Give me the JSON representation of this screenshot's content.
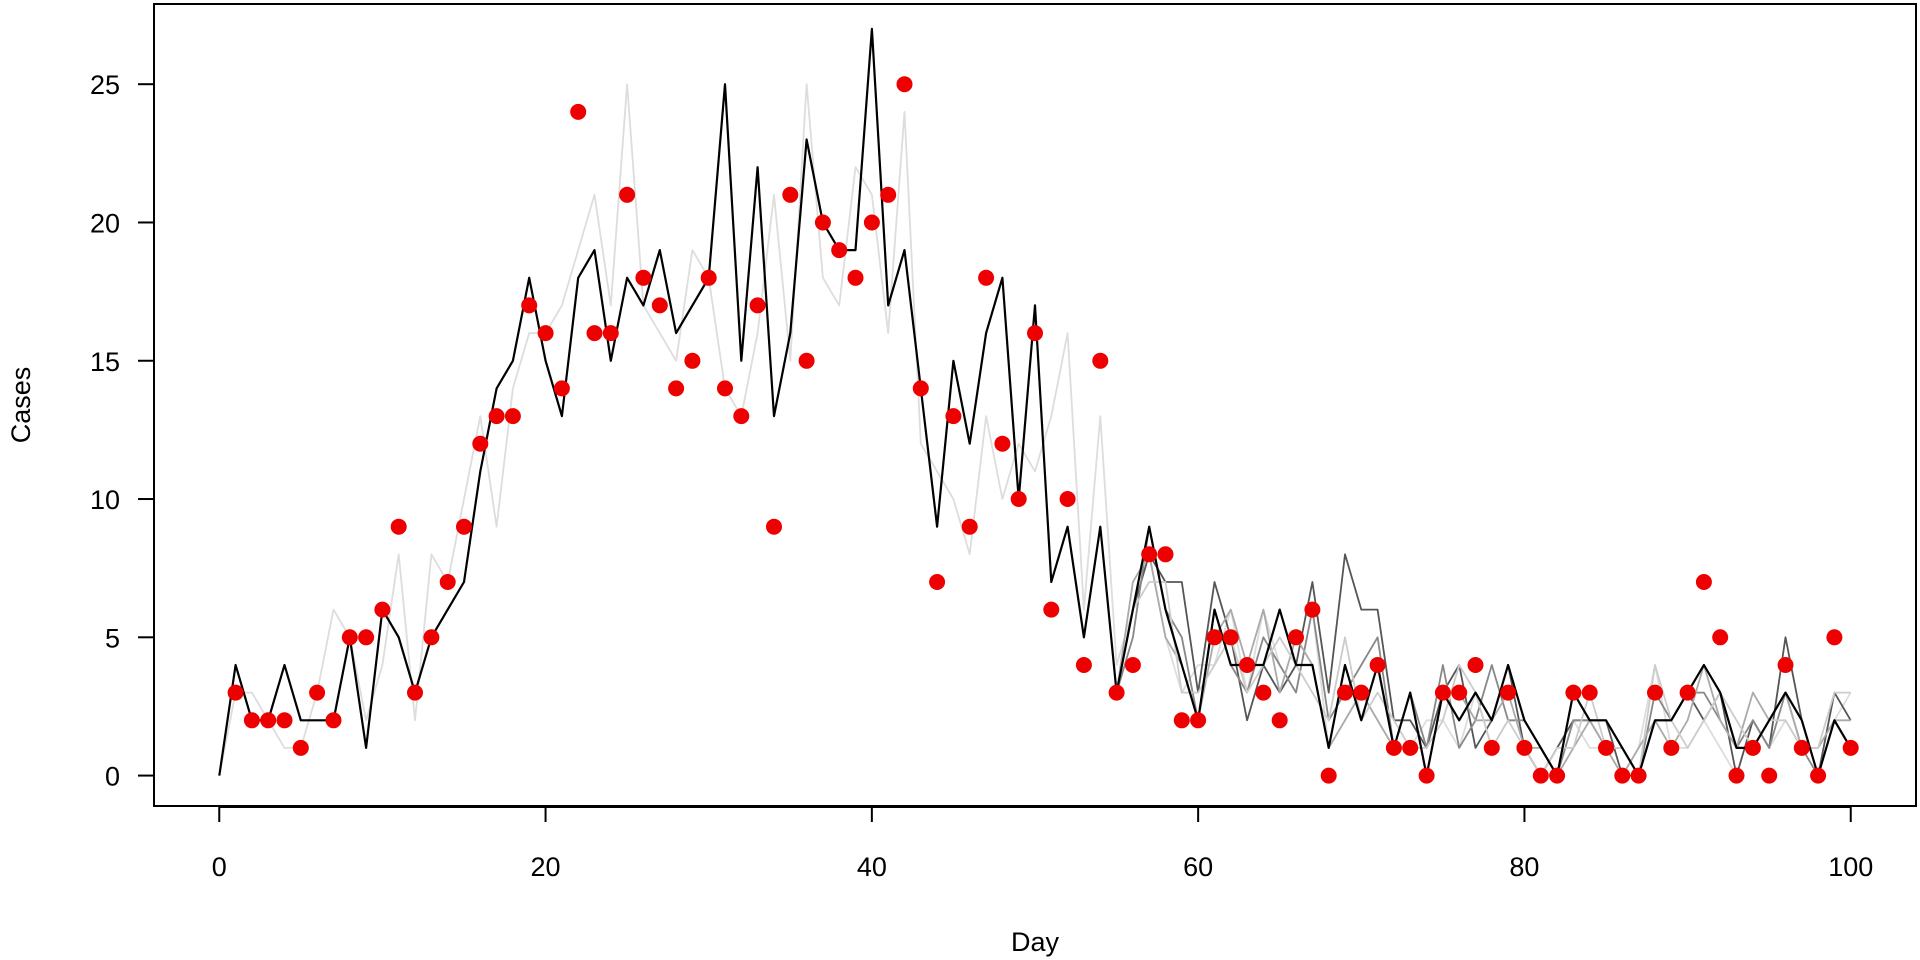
{
  "chart_data": {
    "type": "line",
    "title": "",
    "xlabel": "Day",
    "ylabel": "Cases",
    "xlim": [
      -4,
      104
    ],
    "ylim": [
      -1.1,
      27.9
    ],
    "x_ticks": [
      0,
      20,
      40,
      60,
      80,
      100
    ],
    "y_ticks": [
      0,
      5,
      10,
      15,
      20,
      25
    ],
    "grid": false,
    "legend": "none",
    "observed": {
      "marker": "filled-circle",
      "color": "#ee0000",
      "x": [
        1,
        2,
        3,
        4,
        5,
        6,
        7,
        8,
        9,
        10,
        11,
        12,
        13,
        14,
        15,
        16,
        17,
        18,
        19,
        20,
        21,
        22,
        23,
        24,
        25,
        26,
        27,
        28,
        29,
        30,
        31,
        32,
        33,
        34,
        35,
        36,
        37,
        38,
        39,
        40,
        41,
        42,
        43,
        44,
        45,
        46,
        47,
        48,
        49,
        50,
        51,
        52,
        53,
        54,
        55,
        56,
        57,
        58,
        59,
        60,
        61,
        62,
        63,
        64,
        65,
        66,
        67,
        68,
        69,
        70,
        71,
        72,
        73,
        74,
        75,
        76,
        77,
        78,
        79,
        80,
        81,
        82,
        83,
        84,
        85,
        86,
        87,
        88,
        89,
        90,
        91,
        92,
        93,
        94,
        95,
        96,
        97,
        98,
        99,
        100
      ],
      "y": [
        3,
        2,
        2,
        2,
        1,
        3,
        2,
        5,
        5,
        6,
        9,
        3,
        5,
        7,
        9,
        12,
        13,
        13,
        17,
        16,
        14,
        24,
        16,
        16,
        21,
        18,
        17,
        14,
        15,
        18,
        14,
        13,
        17,
        9,
        21,
        15,
        20,
        19,
        18,
        20,
        21,
        25,
        14,
        7,
        13,
        9,
        18,
        12,
        10,
        16,
        6,
        10,
        4,
        15,
        3,
        4,
        8,
        8,
        2,
        2,
        5,
        5,
        4,
        3,
        2,
        5,
        6,
        0,
        3,
        3,
        4,
        1,
        1,
        0,
        3,
        3,
        4,
        1,
        3,
        1,
        0,
        0,
        3,
        3,
        1,
        0,
        0,
        3,
        1,
        3,
        7,
        5,
        0,
        1,
        0,
        4,
        1,
        0,
        5,
        1
      ]
    },
    "series": [
      {
        "color": "#dddddd",
        "x": [
          0,
          1,
          2,
          3,
          4,
          5,
          6,
          7,
          8,
          9,
          10,
          11,
          12,
          13,
          14,
          15,
          16,
          17,
          18,
          19,
          20,
          21,
          22,
          23,
          24,
          25,
          26,
          27,
          28,
          29,
          30,
          31,
          32,
          33,
          34,
          35,
          36,
          37,
          38,
          39,
          40,
          41,
          42,
          43,
          44,
          45,
          46,
          47,
          48,
          49,
          50,
          51,
          52,
          53,
          54,
          55,
          56,
          57,
          58,
          59,
          60,
          61,
          62,
          63,
          64,
          65,
          66,
          67,
          68,
          69,
          70,
          71,
          72,
          73,
          74,
          75,
          76,
          77,
          78,
          79,
          80,
          81,
          82,
          83,
          84,
          85,
          86,
          87,
          88,
          89,
          90,
          91,
          92,
          93,
          94,
          95,
          96,
          97,
          98,
          99,
          100
        ],
        "y": [
          0,
          3,
          3,
          2,
          1,
          1,
          3,
          6,
          5,
          2,
          4,
          8,
          2,
          8,
          7,
          10,
          13,
          9,
          14,
          16,
          16,
          17,
          19,
          21,
          17,
          25,
          17,
          16,
          15,
          19,
          18,
          14,
          13,
          16,
          21,
          15,
          25,
          18,
          17,
          22,
          21,
          16,
          24,
          12,
          11,
          10,
          8,
          13,
          10,
          12,
          11,
          13,
          16,
          6,
          13,
          4,
          6,
          8,
          5,
          3,
          4,
          4,
          6,
          3,
          6,
          4,
          3,
          6,
          1,
          2,
          3,
          2,
          1,
          1,
          2,
          2,
          1,
          3,
          1,
          2,
          2,
          1,
          0,
          2,
          1,
          1,
          0,
          1,
          4,
          1,
          1,
          2,
          1,
          0,
          2,
          1,
          2,
          1,
          1,
          2,
          3
        ]
      },
      {
        "color": "#555555",
        "x": [
          55,
          56,
          57,
          58,
          59,
          60,
          61,
          62,
          63,
          64,
          65,
          66,
          67,
          68,
          69,
          70,
          71,
          72,
          73,
          74,
          75,
          76,
          77,
          78,
          79,
          80,
          81,
          82,
          83,
          84,
          85,
          86,
          87,
          88,
          89,
          90,
          91,
          92,
          93,
          94,
          95,
          96,
          97,
          98,
          99,
          100
        ],
        "y": [
          3,
          6,
          8,
          7,
          7,
          3,
          7,
          5,
          2,
          4,
          3,
          4,
          7,
          3,
          8,
          6,
          6,
          2,
          2,
          1,
          3,
          4,
          1,
          2,
          4,
          1,
          0,
          1,
          2,
          2,
          2,
          0,
          0,
          2,
          2,
          3,
          2,
          3,
          0,
          2,
          1,
          5,
          2,
          0,
          3,
          2
        ]
      },
      {
        "color": "#888888",
        "x": [
          55,
          56,
          57,
          58,
          59,
          60,
          61,
          62,
          63,
          64,
          65,
          66,
          67,
          68,
          69,
          70,
          71,
          72,
          73,
          74,
          75,
          76,
          77,
          78,
          79,
          80,
          81,
          82,
          83,
          84,
          85,
          86,
          87,
          88,
          89,
          90,
          91,
          92,
          93,
          94,
          95,
          96,
          97,
          98,
          99,
          100
        ],
        "y": [
          3,
          5,
          9,
          6,
          5,
          2,
          6,
          4,
          3,
          5,
          4,
          3,
          6,
          2,
          3,
          4,
          5,
          1,
          3,
          1,
          4,
          1,
          2,
          4,
          2,
          2,
          1,
          0,
          2,
          2,
          1,
          1,
          0,
          3,
          2,
          3,
          3,
          2,
          1,
          2,
          1,
          3,
          1,
          0,
          2,
          1
        ]
      },
      {
        "color": "#aaaaaa",
        "x": [
          55,
          56,
          57,
          58,
          59,
          60,
          61,
          62,
          63,
          64,
          65,
          66,
          67,
          68,
          69,
          70,
          71,
          72,
          73,
          74,
          75,
          76,
          77,
          78,
          79,
          80,
          81,
          82,
          83,
          84,
          85,
          86,
          87,
          88,
          89,
          90,
          91,
          92,
          93,
          94,
          95,
          96,
          97,
          98,
          99,
          100
        ],
        "y": [
          3,
          7,
          8,
          5,
          4,
          2,
          5,
          6,
          4,
          6,
          3,
          5,
          4,
          1,
          2,
          3,
          2,
          1,
          3,
          0,
          3,
          3,
          2,
          2,
          3,
          1,
          1,
          0,
          1,
          2,
          1,
          0,
          1,
          2,
          1,
          2,
          4,
          2,
          1,
          3,
          2,
          3,
          1,
          1,
          2,
          2
        ]
      },
      {
        "color": "#cccccc",
        "x": [
          55,
          56,
          57,
          58,
          59,
          60,
          61,
          62,
          63,
          64,
          65,
          66,
          67,
          68,
          69,
          70,
          71,
          72,
          73,
          74,
          75,
          76,
          77,
          78,
          79,
          80,
          81,
          82,
          83,
          84,
          85,
          86,
          87,
          88,
          89,
          90,
          91,
          92,
          93,
          94,
          95,
          96,
          97,
          98,
          99,
          100
        ],
        "y": [
          3,
          6,
          7,
          7,
          3,
          3,
          4,
          5,
          3,
          4,
          5,
          4,
          3,
          2,
          5,
          2,
          3,
          2,
          1,
          1,
          2,
          4,
          3,
          1,
          2,
          1,
          0,
          1,
          1,
          3,
          1,
          1,
          0,
          4,
          2,
          1,
          2,
          3,
          2,
          1,
          2,
          2,
          1,
          1,
          3,
          3
        ]
      },
      {
        "color": "#000000",
        "x": [
          0,
          1,
          2,
          3,
          4,
          5,
          6,
          7,
          8,
          9,
          10,
          11,
          12,
          13,
          14,
          15,
          16,
          17,
          18,
          19,
          20,
          21,
          22,
          23,
          24,
          25,
          26,
          27,
          28,
          29,
          30,
          31,
          32,
          33,
          34,
          35,
          36,
          37,
          38,
          39,
          40,
          41,
          42,
          43,
          44,
          45,
          46,
          47,
          48,
          49,
          50,
          51,
          52,
          53,
          54,
          55,
          56,
          57,
          58,
          59,
          60,
          61,
          62,
          63,
          64,
          65,
          66,
          67,
          68,
          69,
          70,
          71,
          72,
          73,
          74,
          75,
          76,
          77,
          78,
          79,
          80,
          81,
          82,
          83,
          84,
          85,
          86,
          87,
          88,
          89,
          90,
          91,
          92,
          93,
          94,
          95,
          96,
          97,
          98,
          99,
          100
        ],
        "y": [
          0,
          4,
          2,
          2,
          4,
          2,
          2,
          2,
          5,
          1,
          6,
          5,
          3,
          5,
          6,
          7,
          11,
          14,
          15,
          18,
          15,
          13,
          18,
          19,
          15,
          18,
          17,
          19,
          16,
          17,
          18,
          25,
          15,
          22,
          13,
          16,
          23,
          20,
          19,
          19,
          27,
          17,
          19,
          14,
          9,
          15,
          12,
          16,
          18,
          10,
          17,
          7,
          9,
          5,
          9,
          3,
          6,
          9,
          6,
          4,
          2,
          6,
          4,
          4,
          4,
          6,
          4,
          4,
          1,
          4,
          2,
          4,
          1,
          3,
          0,
          3,
          2,
          3,
          2,
          4,
          2,
          1,
          0,
          3,
          2,
          2,
          1,
          0,
          2,
          2,
          3,
          4,
          3,
          1,
          1,
          2,
          3,
          2,
          0,
          2,
          1
        ]
      }
    ]
  }
}
